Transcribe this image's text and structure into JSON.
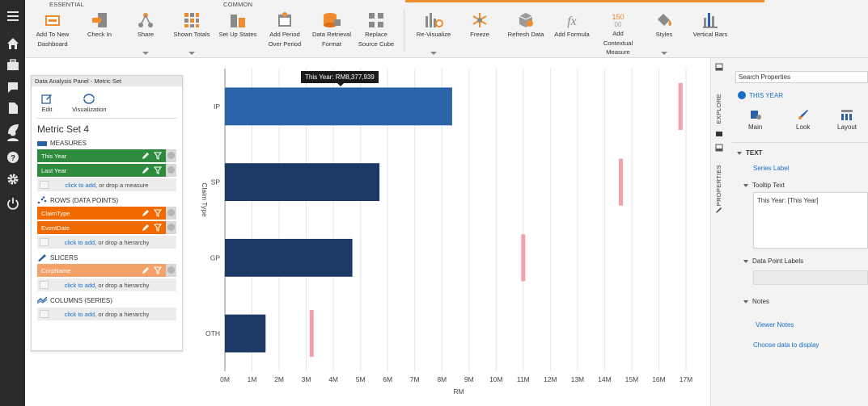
{
  "ribbon": {
    "groups": {
      "essential": "ESSENTIAL",
      "common": "COMMON"
    },
    "accent_color": "#f28a2e",
    "buttons": [
      {
        "id": "add-to-new-dashboard",
        "label_l1": "Add To New",
        "label_l2": "Dashboard",
        "icon": "dashboard-add-icon"
      },
      {
        "id": "check-in",
        "label_l1": "Check In",
        "label_l2": "",
        "icon": "check-in-icon"
      },
      {
        "id": "share",
        "label_l1": "Share",
        "label_l2": "",
        "icon": "share-icon"
      },
      {
        "id": "shown-totals",
        "label_l1": "Shown Totals",
        "label_l2": "",
        "icon": "totals-icon"
      },
      {
        "id": "set-up-states",
        "label_l1": "Set Up States",
        "label_l2": "",
        "icon": "states-icon"
      },
      {
        "id": "add-period-over-period",
        "label_l1": "Add Period",
        "label_l2": "Over Period",
        "icon": "calendar-icon"
      },
      {
        "id": "data-retrieval-format",
        "label_l1": "Data Retrieval",
        "label_l2": "Format",
        "icon": "database-icon"
      },
      {
        "id": "replace-source-cube",
        "label_l1": "Replace",
        "label_l2": "Source Cube",
        "icon": "cube-replace-icon"
      },
      {
        "id": "re-visualize",
        "label_l1": "Re-Visualize",
        "label_l2": "",
        "icon": "revisualize-icon"
      },
      {
        "id": "freeze",
        "label_l1": "Freeze",
        "label_l2": "",
        "icon": "snowflake-icon"
      },
      {
        "id": "refresh-data",
        "label_l1": "Refresh Data",
        "label_l2": "",
        "icon": "refresh-cube-icon"
      },
      {
        "id": "add-formula",
        "label_l1": "Add Formula",
        "label_l2": "",
        "icon": "fx-icon"
      },
      {
        "id": "add-contextual-measure",
        "label_l1": "Add",
        "label_l2": "Contextual",
        "label_l3": "Measure",
        "icon": "contextual-measure-icon",
        "icon_text_top": "150",
        "icon_text_bottom": "00"
      },
      {
        "id": "styles",
        "label_l1": "Styles",
        "label_l2": "",
        "icon": "paint-bucket-icon"
      },
      {
        "id": "vertical-bars",
        "label_l1": "Vertical Bars",
        "label_l2": "",
        "icon": "vertical-bars-icon"
      }
    ]
  },
  "panel": {
    "title": "Data Analysis Panel - Metric Set",
    "edit_label": "Edit",
    "visualization_label": "Visualization",
    "metric_set_title": "Metric Set 4",
    "measures_header": "MEASURES",
    "measures": [
      "This Year",
      "Last Year"
    ],
    "add_measure_link": "click to add",
    "add_measure_rest": ", or drop a measure",
    "rows_header": "ROWS (DATA POINTS)",
    "rows": [
      "ClaimType",
      "EventDate"
    ],
    "add_hierarchy_link": "click to add",
    "add_hierarchy_rest": ", or drop a hierarchy",
    "slicers_header": "SLICERS",
    "slicers": [
      "CorpName"
    ],
    "columns_header": "COLUMNS (SERIES)"
  },
  "chart_data": {
    "type": "bar",
    "orientation": "horizontal",
    "categories": [
      "IP",
      "SP",
      "GP",
      "OTH"
    ],
    "series": [
      {
        "name": "This Year",
        "values": [
          8377939,
          5700000,
          4700000,
          1500000
        ],
        "color": "#1c3864",
        "highlight_color": "#2b62a8"
      },
      {
        "name": "Last Year",
        "values": [
          16800000,
          14600000,
          11000000,
          3200000
        ],
        "color": "#f4a0a8",
        "marker": "line"
      }
    ],
    "xlabel": "RM",
    "ylabel": "Claim Type",
    "x_ticks": [
      "0M",
      "1M",
      "2M",
      "3M",
      "4M",
      "5M",
      "6M",
      "7M",
      "8M",
      "9M",
      "10M",
      "11M",
      "12M",
      "13M",
      "14M",
      "15M",
      "16M",
      "17M"
    ],
    "xlim": [
      0,
      17000000
    ],
    "grid": true
  },
  "tooltip": {
    "text": "This Year: RM8,377,939"
  },
  "vtabs": {
    "explore": "EXPLORE",
    "properties": "PROPERTIES"
  },
  "props": {
    "search_placeholder": "Search Properties",
    "selected_series": "THIS YEAR",
    "tabs": {
      "main": "Main",
      "look": "Look",
      "layout": "Layout"
    },
    "text_header": "TEXT",
    "series_label": "Series Label",
    "tooltip_text_header": "Tooltip Text",
    "tooltip_text_value": "This Year: [This Year]",
    "data_point_labels_header": "Data Point Labels",
    "notes_header": "Notes",
    "viewer_notes": "Viewer Notes",
    "choose_data": "Choose data to display"
  }
}
